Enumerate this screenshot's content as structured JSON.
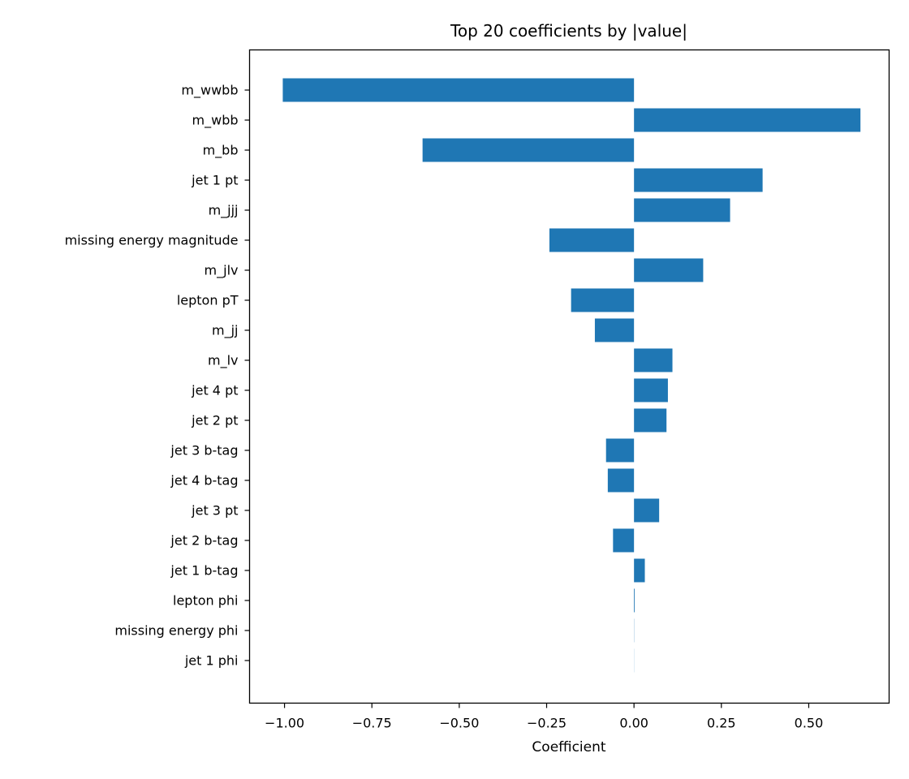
{
  "chart_data": {
    "type": "bar",
    "orientation": "horizontal",
    "title": "Top 20 coefficients by |value|",
    "xlabel": "Coefficient",
    "ylabel": "",
    "xlim": [
      -1.1,
      0.73
    ],
    "xticks": [
      -1.0,
      -0.75,
      -0.5,
      -0.25,
      0.0,
      0.25,
      0.5
    ],
    "xtick_labels": [
      "−1.00",
      "−0.75",
      "−0.50",
      "−0.25",
      "0.00",
      "0.25",
      "0.50"
    ],
    "grid": false,
    "bar_color": "#1f77b4",
    "categories": [
      "m_wwbb",
      "m_wbb",
      "m_bb",
      "jet 1 pt",
      "m_jjj",
      "missing energy magnitude",
      "m_jlv",
      "lepton pT",
      "m_jj",
      "m_lv",
      "jet 4 pt",
      "jet 2 pt",
      "jet 3 b-tag",
      "jet 4 b-tag",
      "jet 3 pt",
      "jet 2 b-tag",
      "jet 1 b-tag",
      "lepton phi",
      "missing energy phi",
      "jet 1 phi"
    ],
    "values": [
      -1.005,
      0.648,
      -0.605,
      0.368,
      0.275,
      -0.242,
      0.198,
      -0.18,
      -0.112,
      0.11,
      0.097,
      0.093,
      -0.08,
      -0.075,
      0.072,
      -0.06,
      0.031,
      0.002,
      0.0005,
      0.0003
    ]
  }
}
